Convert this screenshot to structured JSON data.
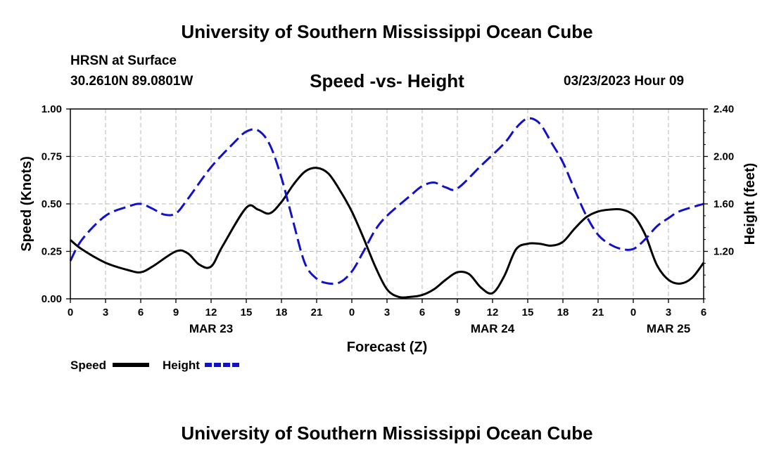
{
  "header": {
    "title": "University of Southern Mississippi Ocean Cube",
    "station_name": "HRSN at Surface",
    "station_coords": "30.2610N  89.0801W",
    "chart_title": "Speed -vs- Height",
    "run_time": "03/23/2023 Hour 09"
  },
  "footer": {
    "title": "University of Southern Mississippi Ocean Cube"
  },
  "chart_data": {
    "type": "line",
    "title": "Speed -vs- Height",
    "xlabel": "Forecast (Z)",
    "ylabel": "Speed (Knots)",
    "y2label": "Height (feet)",
    "x_unit": "hours since MAR 23 00Z",
    "xlim": [
      0,
      54
    ],
    "ylim": [
      0,
      1
    ],
    "y2lim": [
      0.8,
      2.4
    ],
    "grid": true,
    "x_ticks": [
      {
        "x": 0,
        "label": "0"
      },
      {
        "x": 3,
        "label": "3"
      },
      {
        "x": 6,
        "label": "6"
      },
      {
        "x": 9,
        "label": "9"
      },
      {
        "x": 12,
        "label": "12"
      },
      {
        "x": 15,
        "label": "15"
      },
      {
        "x": 18,
        "label": "18"
      },
      {
        "x": 21,
        "label": "21"
      },
      {
        "x": 24,
        "label": "0"
      },
      {
        "x": 27,
        "label": "3"
      },
      {
        "x": 30,
        "label": "6"
      },
      {
        "x": 33,
        "label": "9"
      },
      {
        "x": 36,
        "label": "12"
      },
      {
        "x": 39,
        "label": "15"
      },
      {
        "x": 42,
        "label": "18"
      },
      {
        "x": 45,
        "label": "21"
      },
      {
        "x": 48,
        "label": "0"
      },
      {
        "x": 51,
        "label": "3"
      },
      {
        "x": 54,
        "label": "6"
      }
    ],
    "date_labels": [
      {
        "x": 12,
        "label": "MAR 23"
      },
      {
        "x": 36,
        "label": "MAR 24"
      },
      {
        "x": 51,
        "label": "MAR 25"
      }
    ],
    "y_ticks": [
      {
        "v": 0,
        "label": "0.00"
      },
      {
        "v": 0.25,
        "label": "0.25"
      },
      {
        "v": 0.5,
        "label": "0.50"
      },
      {
        "v": 0.75,
        "label": "0.75"
      },
      {
        "v": 1,
        "label": "1.00"
      }
    ],
    "y2_ticks": [
      {
        "v": 1.2,
        "label": "1.20"
      },
      {
        "v": 1.6,
        "label": "1.60"
      },
      {
        "v": 2.0,
        "label": "2.00"
      },
      {
        "v": 2.4,
        "label": "2.40"
      }
    ],
    "series": [
      {
        "name": "Speed",
        "axis": "left",
        "color": "#000000",
        "dash": "solid",
        "x": [
          0,
          1,
          3,
          5,
          6,
          7,
          9,
          10,
          11,
          12,
          13,
          15,
          16,
          17,
          18,
          19,
          20,
          21,
          22,
          23,
          24,
          25,
          26,
          27,
          28,
          29,
          30,
          31,
          32,
          33,
          34,
          35,
          36,
          37,
          38,
          39,
          40,
          41,
          42,
          43,
          44,
          45,
          46,
          47,
          48,
          49,
          50,
          51,
          52,
          53,
          54
        ],
        "values": [
          0.31,
          0.26,
          0.19,
          0.15,
          0.14,
          0.17,
          0.25,
          0.24,
          0.18,
          0.17,
          0.28,
          0.48,
          0.47,
          0.45,
          0.51,
          0.6,
          0.67,
          0.69,
          0.66,
          0.57,
          0.46,
          0.32,
          0.17,
          0.05,
          0.01,
          0.01,
          0.02,
          0.05,
          0.1,
          0.14,
          0.13,
          0.06,
          0.03,
          0.12,
          0.26,
          0.29,
          0.29,
          0.28,
          0.3,
          0.37,
          0.43,
          0.46,
          0.47,
          0.47,
          0.44,
          0.34,
          0.18,
          0.1,
          0.08,
          0.11,
          0.19
        ]
      },
      {
        "name": "Height",
        "axis": "right",
        "color": "#1111cc",
        "dash": "dashed",
        "x": [
          0,
          1,
          3,
          5,
          6,
          7,
          8,
          9,
          10,
          12,
          14,
          15,
          16,
          17,
          18,
          19,
          20,
          21,
          22,
          23,
          24,
          25,
          26,
          27,
          29,
          30,
          31,
          32,
          33,
          35,
          37,
          38,
          39,
          40,
          41,
          42,
          43,
          44,
          45,
          46,
          47,
          48,
          49,
          50,
          51,
          52,
          54
        ],
        "values": [
          1.12,
          1.3,
          1.5,
          1.58,
          1.6,
          1.56,
          1.51,
          1.52,
          1.64,
          1.91,
          2.12,
          2.21,
          2.22,
          2.1,
          1.82,
          1.45,
          1.1,
          0.97,
          0.93,
          0.94,
          1.03,
          1.2,
          1.38,
          1.5,
          1.67,
          1.75,
          1.78,
          1.74,
          1.73,
          1.92,
          2.11,
          2.24,
          2.32,
          2.28,
          2.12,
          1.95,
          1.72,
          1.5,
          1.34,
          1.26,
          1.22,
          1.22,
          1.3,
          1.41,
          1.48,
          1.54,
          1.6
        ]
      }
    ],
    "legend": {
      "placement": "bottom-left",
      "entries": [
        {
          "label": "Speed",
          "color": "#000000",
          "dash": "solid"
        },
        {
          "label": "Height",
          "color": "#1111cc",
          "dash": "dashed"
        }
      ]
    }
  }
}
